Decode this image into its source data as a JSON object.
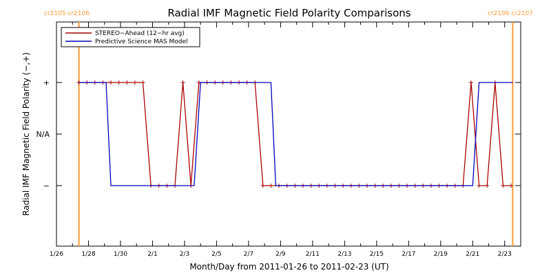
{
  "chart_data": {
    "type": "line",
    "title": "Radial IMF Magnetic Field Polarity Comparisons",
    "xlabel": "Month/Day from 2011-01-26 to 2011-02-23 (UT)",
    "ylabel": "Radial IMF Magnetic Field Polarity (−,+)",
    "xlim": [
      "2011-01-26",
      "2011-02-24"
    ],
    "x_ticks": [
      "1/26",
      "1/28",
      "1/30",
      "2/1",
      "2/3",
      "2/5",
      "2/7",
      "2/9",
      "2/11",
      "2/13",
      "2/15",
      "2/17",
      "2/19",
      "2/21",
      "2/23"
    ],
    "y_ticks": [
      "+",
      "N/A",
      "−"
    ],
    "y_values": {
      "+": 1,
      "N/A": 0,
      "−": -1
    },
    "carrington_markers": [
      {
        "date": "2011-01-27.4",
        "label": "cr2105 cr2106",
        "color": "#ff9933"
      },
      {
        "date": "2011-02-23.5",
        "label": "cr2106 cr2107",
        "color": "#ff9933"
      }
    ],
    "legend_position": "top-left",
    "series": [
      {
        "name": "STEREO−Ahead (12−hr avg)",
        "color": "#aa0000",
        "markers": true,
        "points": [
          [
            "2011-01-27.4",
            1
          ],
          [
            "2011-01-27.9",
            1
          ],
          [
            "2011-01-28.4",
            1
          ],
          [
            "2011-01-28.9",
            1
          ],
          [
            "2011-01-29.4",
            1
          ],
          [
            "2011-01-29.9",
            1
          ],
          [
            "2011-01-30.4",
            1
          ],
          [
            "2011-01-30.9",
            1
          ],
          [
            "2011-01-31.4",
            1
          ],
          [
            "2011-01-31.9",
            -1
          ],
          [
            "2011-02-01.4",
            -1
          ],
          [
            "2011-02-01.9",
            -1
          ],
          [
            "2011-02-02.4",
            -1
          ],
          [
            "2011-02-02.9",
            1
          ],
          [
            "2011-02-03.4",
            -1
          ],
          [
            "2011-02-03.9",
            1
          ],
          [
            "2011-02-04.4",
            1
          ],
          [
            "2011-02-04.9",
            1
          ],
          [
            "2011-02-05.4",
            1
          ],
          [
            "2011-02-05.9",
            1
          ],
          [
            "2011-02-06.4",
            1
          ],
          [
            "2011-02-06.9",
            1
          ],
          [
            "2011-02-07.4",
            1
          ],
          [
            "2011-02-07.9",
            -1
          ],
          [
            "2011-02-08.4",
            -1
          ],
          [
            "2011-02-08.9",
            -1
          ],
          [
            "2011-02-09.4",
            -1
          ],
          [
            "2011-02-09.9",
            -1
          ],
          [
            "2011-02-10.4",
            -1
          ],
          [
            "2011-02-10.9",
            -1
          ],
          [
            "2011-02-11.4",
            -1
          ],
          [
            "2011-02-11.9",
            -1
          ],
          [
            "2011-02-12.4",
            -1
          ],
          [
            "2011-02-12.9",
            -1
          ],
          [
            "2011-02-13.4",
            -1
          ],
          [
            "2011-02-13.9",
            -1
          ],
          [
            "2011-02-14.4",
            -1
          ],
          [
            "2011-02-14.9",
            -1
          ],
          [
            "2011-02-15.4",
            -1
          ],
          [
            "2011-02-15.9",
            -1
          ],
          [
            "2011-02-16.4",
            -1
          ],
          [
            "2011-02-16.9",
            -1
          ],
          [
            "2011-02-17.4",
            -1
          ],
          [
            "2011-02-17.9",
            -1
          ],
          [
            "2011-02-18.4",
            -1
          ],
          [
            "2011-02-18.9",
            -1
          ],
          [
            "2011-02-19.4",
            -1
          ],
          [
            "2011-02-19.9",
            -1
          ],
          [
            "2011-02-20.4",
            -1
          ],
          [
            "2011-02-20.9",
            1
          ],
          [
            "2011-02-21.4",
            -1
          ],
          [
            "2011-02-21.9",
            -1
          ],
          [
            "2011-02-22.4",
            1
          ],
          [
            "2011-02-22.9",
            -1
          ],
          [
            "2011-02-23.4",
            -1
          ]
        ]
      },
      {
        "name": "Predictive Science MAS Model",
        "color": "#0000bb",
        "markers": false,
        "points": [
          [
            "2011-01-27.4",
            1
          ],
          [
            "2011-01-29.1",
            1
          ],
          [
            "2011-01-29.4",
            -1
          ],
          [
            "2011-02-03.6",
            -1
          ],
          [
            "2011-02-04.0",
            1
          ],
          [
            "2011-02-08.4",
            1
          ],
          [
            "2011-02-08.7",
            -1
          ],
          [
            "2011-02-21.0",
            -1
          ],
          [
            "2011-02-21.4",
            1
          ],
          [
            "2011-02-23.5",
            1
          ]
        ]
      }
    ]
  }
}
